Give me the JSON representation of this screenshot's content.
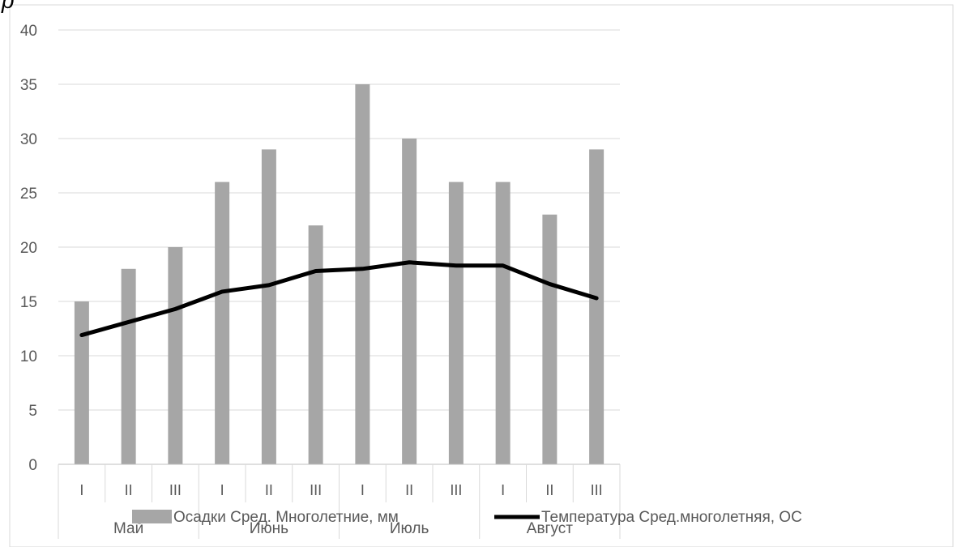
{
  "chart_data": {
    "type": "bar",
    "corner_mark": "р",
    "months": [
      "Май",
      "Июнь",
      "Июль",
      "Август"
    ],
    "categories": [
      "I",
      "II",
      "III",
      "I",
      "II",
      "III",
      "I",
      "II",
      "III",
      "I",
      "II",
      "III"
    ],
    "series": [
      {
        "name": "Осадки Сред. Многолетние, мм",
        "kind": "bar",
        "color": "#a6a6a6",
        "values": [
          15,
          18,
          20,
          26,
          29,
          22,
          35,
          30,
          26,
          26,
          23,
          29
        ]
      },
      {
        "name": "Температура Сред.многолетняя, ОС",
        "kind": "line",
        "color": "#000000",
        "values": [
          11.9,
          13.1,
          14.3,
          15.9,
          16.5,
          17.8,
          18.0,
          18.6,
          18.3,
          18.3,
          16.6,
          15.3
        ]
      }
    ],
    "ylim": [
      0,
      40
    ],
    "yticks": [
      "0",
      "5",
      "10",
      "15",
      "20",
      "25",
      "30",
      "35",
      "40"
    ],
    "grid": true,
    "legend": "bottom"
  }
}
